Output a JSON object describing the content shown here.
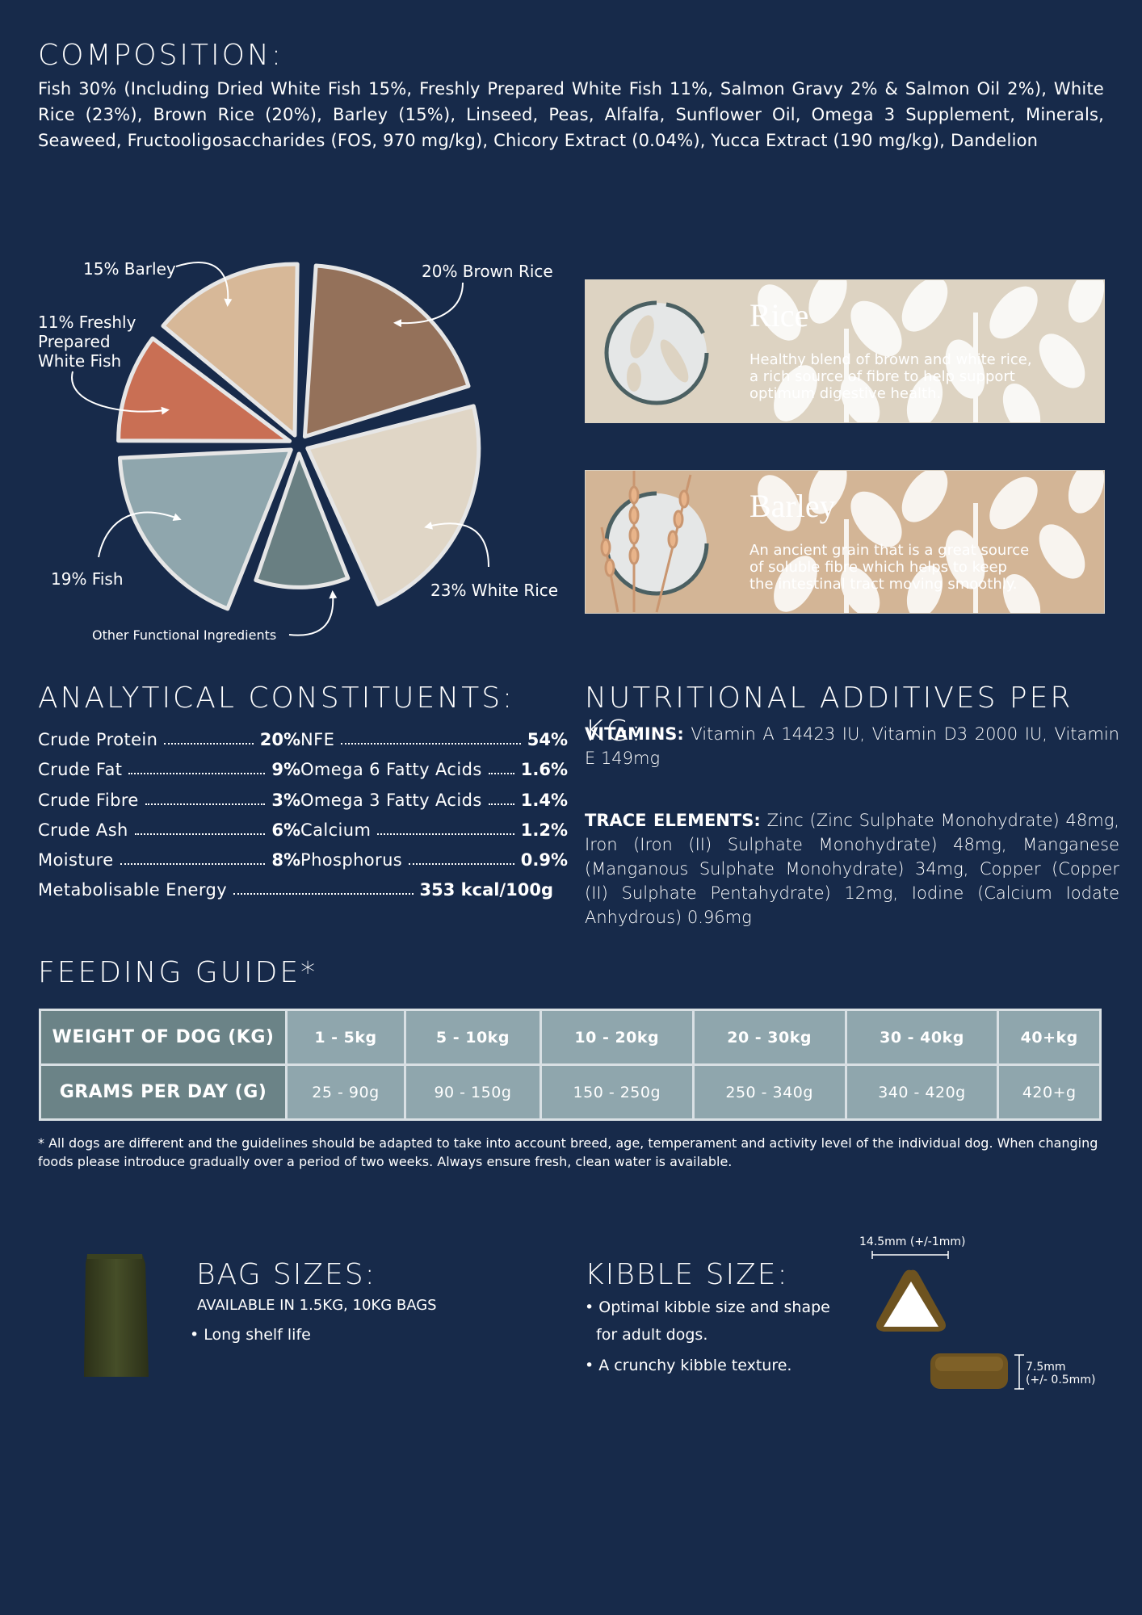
{
  "composition": {
    "title": "COMPOSITION:",
    "text": "Fish 30% (Including Dried White Fish 15%, Freshly Prepared White Fish 11%, Salmon Gravy 2% & Salmon Oil 2%), White Rice (23%), Brown Rice (20%), Barley (15%), Linseed, Peas, Alfalfa, Sunflower Oil, Omega 3 Supplement, Minerals, Seaweed, Fructooligosaccharides (FOS, 970 mg/kg), Chicory Extract (0.04%), Yucca Extract (190 mg/kg), Dandelion"
  },
  "chart_data": {
    "type": "pie",
    "slices": [
      {
        "label": "20% Brown Rice",
        "value": 20,
        "color": "#94715a"
      },
      {
        "label": "23% White Rice",
        "value": 23,
        "color": "#e0d6c6"
      },
      {
        "label": "Other Functional Ingredients",
        "value": 12,
        "color": "#697f82"
      },
      {
        "label": "19% Fish",
        "value": 19,
        "color": "#8fa6ad"
      },
      {
        "label": "11% Freshly Prepared White Fish",
        "value": 11,
        "color": "#c96f54"
      },
      {
        "label": "15% Barley",
        "value": 15,
        "color": "#d7b898"
      }
    ]
  },
  "pie_labels": {
    "barley": "15% Barley",
    "brown_rice": "20% Brown Rice",
    "white_fish_1": "11% Freshly",
    "white_fish_2": "Prepared",
    "white_fish_3": "White Fish",
    "fish": "19% Fish",
    "white_rice": "23% White Rice",
    "other": "Other Functional Ingredients"
  },
  "panels": {
    "rice": {
      "title": "Rice",
      "line1": "Healthy blend of brown and white rice,",
      "line2": "a rich source of fibre to help support",
      "line3": "optimum digestive health."
    },
    "barley": {
      "title": "Barley",
      "line1": "An ancient grain that is a great source",
      "line2": "of soluble fibre which helps to keep",
      "line3": "the intestinal tract moving smoothly."
    }
  },
  "analytical": {
    "title": "ANALYTICAL CONSTITUENTS:",
    "left": [
      {
        "label": "Crude  Protein",
        "value": "20%"
      },
      {
        "label": "Crude  Fat",
        "value": "9%"
      },
      {
        "label": "Crude  Fibre",
        "value": "3%"
      },
      {
        "label": "Crude  Ash",
        "value": "6%"
      },
      {
        "label": "Moisture",
        "value": "8%"
      }
    ],
    "right": [
      {
        "label": "NFE",
        "value": "54%"
      },
      {
        "label": "Omega  6  Fatty  Acids",
        "value": "1.6%"
      },
      {
        "label": "Omega  3  Fatty  Acids",
        "value": "1.4%"
      },
      {
        "label": "Calcium",
        "value": "1.2%"
      },
      {
        "label": "Phosphorus",
        "value": "0.9%"
      }
    ],
    "energy": {
      "label": "Metabolisable Energy",
      "value": "353 kcal/100g"
    }
  },
  "nutrition": {
    "title": "NUTRITIONAL ADDITIVES PER KG:",
    "vitamins_label": "VITAMINS:",
    "vitamins_text": " Vitamin A 14423 IU, Vitamin D3 2000 IU, Vitamin E 149mg",
    "trace_label": "TRACE ELEMENTS:",
    "trace_text": " Zinc (Zinc Sulphate Monohydrate) 48mg, Iron (Iron (II) Sulphate Monohydrate) 48mg, Manganese (Manganous Sulphate Monohydrate) 34mg, Copper (Copper (II) Sulphate Pentahydrate) 12mg, Iodine (Calcium Iodate Anhydrous) 0.96mg"
  },
  "feeding": {
    "title": "FEEDING GUIDE*",
    "weight_header": "WEIGHT OF DOG (KG)",
    "grams_header": "GRAMS PER DAY (G)",
    "weights": [
      "1 - 5kg",
      "5 - 10kg",
      "10 - 20kg",
      "20 - 30kg",
      "30 - 40kg",
      "40+kg"
    ],
    "grams": [
      "25 - 90g",
      "90 - 150g",
      "150 - 250g",
      "250 - 340g",
      "340 - 420g",
      "420+g"
    ],
    "note": "* All dogs are different and the guidelines should be adapted to take into account breed, age, temperament and activity level of the individual dog. When changing foods please introduce gradually over a period of two weeks. Always ensure fresh, clean water is available."
  },
  "bag": {
    "title": "BAG SIZES:",
    "available": "AVAILABLE IN 1.5KG, 10KG BAGS",
    "bullet": "• Long shelf life"
  },
  "kibble": {
    "title": "KIBBLE SIZE:",
    "bullet1a": "• Optimal kibble size and shape",
    "bullet1b": "for adult dogs.",
    "bullet2": "• A crunchy kibble texture.",
    "width_dim": "14.5mm (+/-1mm)",
    "height_dim_1": "7.5mm",
    "height_dim_2": "(+/- 0.5mm)"
  },
  "colors": {
    "background": "#172a4a",
    "rice_panel": "#ddd3c2",
    "barley_panel": "#d3b596",
    "table_cell": "#8fa6ad",
    "table_head": "#6b8387",
    "kibble": "#6e5320",
    "bag": "#3d4423"
  }
}
